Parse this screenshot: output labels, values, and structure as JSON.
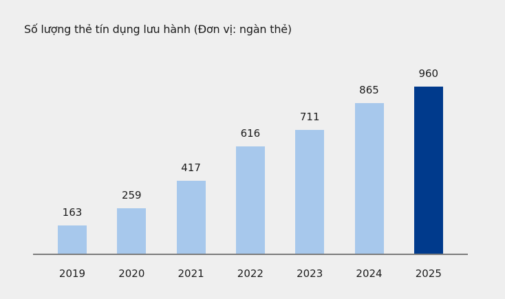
{
  "chart_data": {
    "type": "bar",
    "title": "Số lượng thẻ tín dụng lưu hành (Đơn vị: ngàn thẻ)",
    "xlabel": "",
    "ylabel": "",
    "categories": [
      "2019",
      "2020",
      "2021",
      "2022",
      "2023",
      "2024",
      "2025"
    ],
    "values": [
      163,
      259,
      417,
      616,
      711,
      865,
      960
    ],
    "value_labels": [
      "163",
      "259",
      "417",
      "616",
      "711",
      "865",
      "960"
    ],
    "ylim": [
      0,
      960
    ],
    "grid": false,
    "legend": null,
    "colors": {
      "default": "#a7c8ec",
      "highlight": "#003a8c",
      "highlight_index": 6,
      "axis": "#7a7a7a",
      "background": "#efefef"
    }
  }
}
